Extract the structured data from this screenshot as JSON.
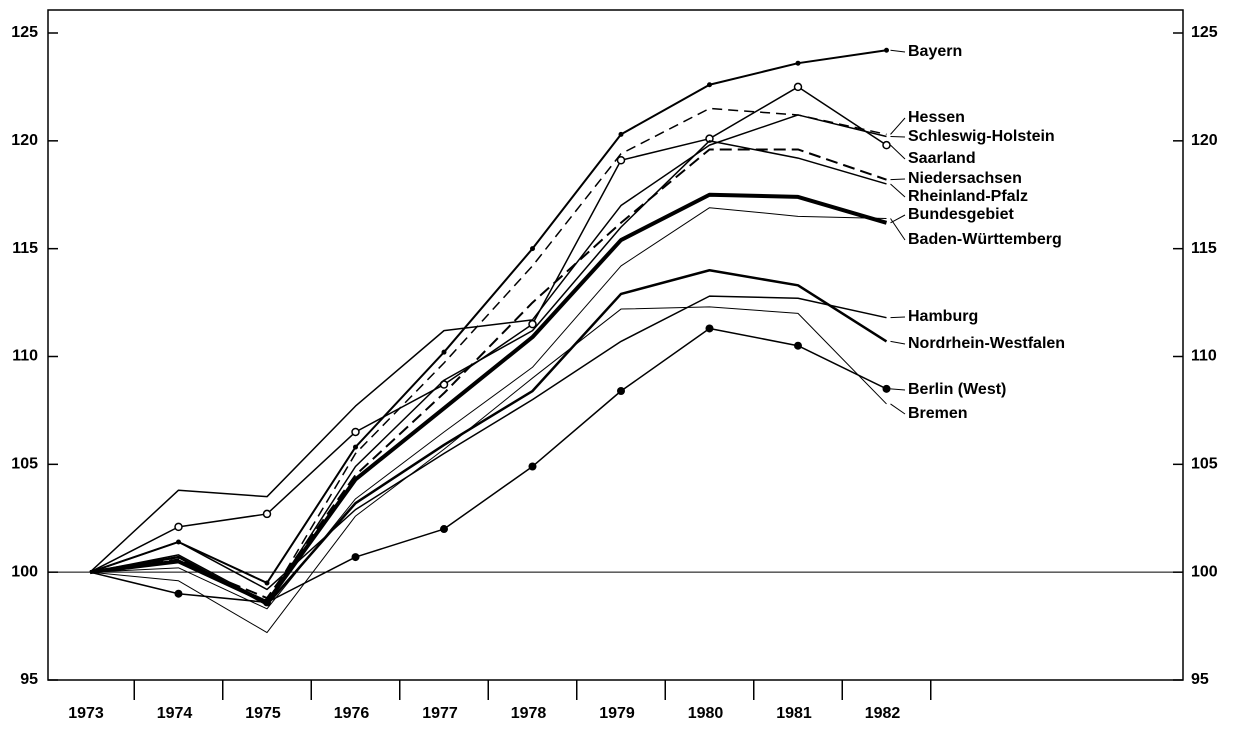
{
  "chart_data": {
    "type": "line",
    "categories": [
      "1973",
      "1974",
      "1975",
      "1976",
      "1977",
      "1978",
      "1979",
      "1980",
      "1981",
      "1982"
    ],
    "ylim": [
      95,
      125
    ],
    "yticks": [
      95,
      100,
      105,
      110,
      115,
      120,
      125
    ],
    "y2lim": [
      95,
      125
    ],
    "y2ticks": [
      95,
      100,
      105,
      110,
      115,
      120,
      125
    ],
    "reference_line": 100,
    "series": [
      {
        "name": "Bayern",
        "color": "#000000",
        "width": 2,
        "dash": null,
        "marker": "small-dot",
        "values": [
          100,
          101.4,
          99.5,
          105.8,
          110.2,
          115.0,
          120.3,
          122.6,
          123.6,
          124.2
        ]
      },
      {
        "name": "Hessen",
        "color": "#000000",
        "width": 1.5,
        "dash": "10 6",
        "marker": null,
        "values": [
          100,
          100.6,
          98.6,
          105.5,
          109.7,
          114.2,
          119.4,
          121.5,
          121.2,
          120.3
        ]
      },
      {
        "name": "Schleswig-Holstein",
        "color": "#000000",
        "width": 1.5,
        "dash": null,
        "marker": null,
        "values": [
          100,
          103.8,
          103.5,
          107.7,
          111.2,
          111.7,
          117.0,
          119.8,
          121.2,
          120.2
        ]
      },
      {
        "name": "Saarland",
        "color": "#000000",
        "width": 1.5,
        "dash": null,
        "marker": "open-circle",
        "values": [
          100,
          102.1,
          102.7,
          106.5,
          108.7,
          111.5,
          119.1,
          120.1,
          122.5,
          119.8
        ]
      },
      {
        "name": "Niedersachsen",
        "color": "#000000",
        "width": 2,
        "dash": "12 6",
        "marker": null,
        "values": [
          100,
          100.5,
          98.8,
          104.5,
          108.3,
          112.5,
          116.2,
          119.6,
          119.6,
          118.2
        ]
      },
      {
        "name": "Rheinland-Pfalz",
        "color": "#000000",
        "width": 1.5,
        "dash": null,
        "marker": null,
        "values": [
          100,
          100.8,
          98.6,
          104.9,
          108.9,
          111.2,
          116.0,
          120.0,
          119.2,
          118.0
        ]
      },
      {
        "name": "Bundesgebiet",
        "color": "#000000",
        "width": 4,
        "dash": null,
        "marker": null,
        "values": [
          100,
          100.5,
          98.6,
          104.3,
          107.6,
          110.9,
          115.4,
          117.5,
          117.4,
          116.2
        ]
      },
      {
        "name": "Baden-Württemberg",
        "color": "#000000",
        "width": 1,
        "dash": null,
        "marker": null,
        "values": [
          100,
          100.2,
          98.3,
          103.4,
          106.5,
          109.5,
          114.2,
          116.9,
          116.5,
          116.4
        ]
      },
      {
        "name": "Hamburg",
        "color": "#000000",
        "width": 1.5,
        "dash": null,
        "marker": null,
        "values": [
          100,
          101.4,
          99.2,
          102.9,
          105.5,
          108.0,
          110.7,
          112.8,
          112.7,
          111.8
        ]
      },
      {
        "name": "Nordrhein-Westfalen",
        "color": "#000000",
        "width": 2.5,
        "dash": null,
        "marker": null,
        "values": [
          100,
          100.7,
          98.5,
          103.2,
          105.9,
          108.4,
          112.9,
          114.0,
          113.3,
          110.7
        ]
      },
      {
        "name": "Berlin (West)",
        "color": "#000000",
        "width": 1.5,
        "dash": null,
        "marker": "dot",
        "values": [
          100,
          99.0,
          98.6,
          100.7,
          102.0,
          104.9,
          108.4,
          111.3,
          110.5,
          108.5
        ]
      },
      {
        "name": "Bremen",
        "color": "#000000",
        "width": 1,
        "dash": null,
        "marker": null,
        "values": [
          100,
          99.6,
          97.2,
          102.6,
          105.7,
          109.0,
          112.2,
          112.3,
          112.0,
          107.8
        ]
      }
    ]
  }
}
